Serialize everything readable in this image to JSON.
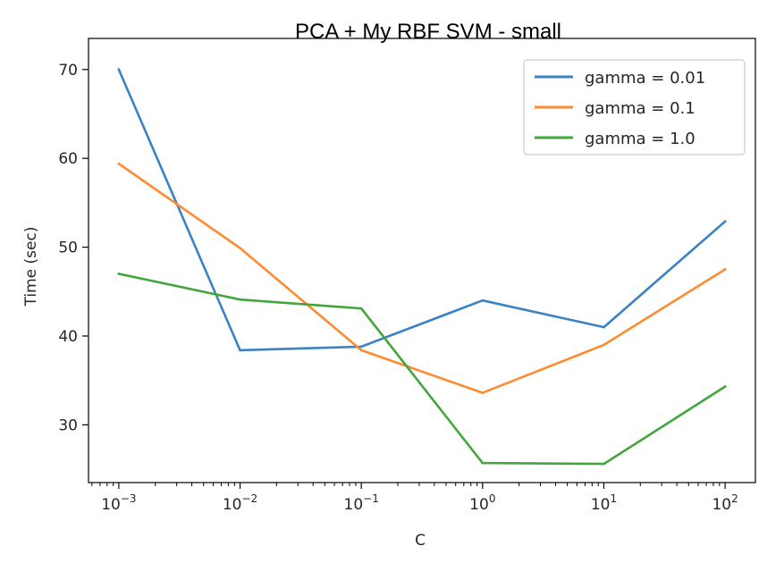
{
  "chart_data": {
    "type": "line",
    "title": "PCA + My RBF SVM - small",
    "xlabel": "C",
    "ylabel": "Time (sec)",
    "xscale": "log",
    "x": [
      0.001,
      0.01,
      0.1,
      1,
      10,
      100
    ],
    "xtick_labels": [
      {
        "base": "10",
        "exp": "−3"
      },
      {
        "base": "10",
        "exp": "−2"
      },
      {
        "base": "10",
        "exp": "−1"
      },
      {
        "base": "10",
        "exp": "0"
      },
      {
        "base": "10",
        "exp": "1"
      },
      {
        "base": "10",
        "exp": "2"
      }
    ],
    "yticks": [
      30,
      40,
      50,
      60,
      70
    ],
    "ylim": [
      23.5,
      73.5
    ],
    "xlim_decades": [
      -3.25,
      2.25
    ],
    "legend_position": "top-right",
    "series": [
      {
        "name": "gamma = 0.01",
        "color": "#3b82c4",
        "values": [
          70.0,
          38.4,
          38.8,
          44.0,
          41.0,
          52.9
        ]
      },
      {
        "name": "gamma = 0.1",
        "color": "#ff8a2f",
        "values": [
          59.4,
          49.9,
          38.4,
          33.6,
          39.0,
          47.5
        ]
      },
      {
        "name": "gamma = 1.0",
        "color": "#42a63c",
        "values": [
          47.0,
          44.1,
          43.1,
          25.7,
          25.6,
          34.3
        ]
      }
    ]
  }
}
